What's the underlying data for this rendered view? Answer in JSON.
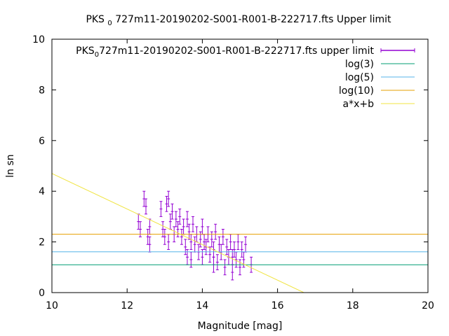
{
  "chart_data": {
    "type": "scatter",
    "title_prefix": "PKS",
    "title_sub": "0",
    "title_suffix": "727m11-20190202-S001-R001-B-222717.fts Upper limit",
    "xlabel": "Magnitude [mag]",
    "ylabel": "ln sn",
    "xlim": [
      10,
      20
    ],
    "ylim": [
      0,
      10
    ],
    "xticks": [
      "10",
      "12",
      "14",
      "16",
      "18",
      "20"
    ],
    "yticks": [
      "0",
      "2",
      "4",
      "6",
      "8",
      "10"
    ],
    "grid": false,
    "legend_position": "top-right",
    "series": [
      {
        "name_prefix": "PKS",
        "name_sub": "0",
        "name_suffix": "727m11-20190202-S001-R001-B-222717.fts upper limit",
        "kind": "errorbar",
        "color": "#9400d3",
        "points": [
          [
            12.3,
            2.8,
            0.3
          ],
          [
            12.35,
            2.5,
            0.3
          ],
          [
            12.45,
            3.7,
            0.3
          ],
          [
            12.5,
            3.4,
            0.3
          ],
          [
            12.55,
            2.2,
            0.3
          ],
          [
            12.6,
            2.6,
            0.3
          ],
          [
            12.6,
            1.9,
            0.3
          ],
          [
            12.9,
            3.3,
            0.3
          ],
          [
            12.95,
            2.5,
            0.3
          ],
          [
            13.0,
            2.2,
            0.3
          ],
          [
            13.05,
            3.5,
            0.3
          ],
          [
            13.1,
            2.0,
            0.3
          ],
          [
            13.1,
            3.7,
            0.3
          ],
          [
            13.15,
            2.8,
            0.3
          ],
          [
            13.2,
            3.2,
            0.3
          ],
          [
            13.25,
            2.3,
            0.3
          ],
          [
            13.3,
            2.9,
            0.3
          ],
          [
            13.35,
            2.5,
            0.3
          ],
          [
            13.4,
            3.0,
            0.3
          ],
          [
            13.45,
            2.2,
            0.3
          ],
          [
            13.5,
            2.6,
            0.3
          ],
          [
            13.55,
            1.8,
            0.3
          ],
          [
            13.6,
            2.9,
            0.3
          ],
          [
            13.65,
            2.4,
            0.3
          ],
          [
            13.7,
            2.0,
            0.3
          ],
          [
            13.7,
            1.3,
            0.3
          ],
          [
            13.75,
            2.7,
            0.3
          ],
          [
            13.8,
            1.9,
            0.3
          ],
          [
            13.85,
            2.3,
            0.3
          ],
          [
            13.9,
            1.6,
            0.3
          ],
          [
            13.95,
            2.1,
            0.3
          ],
          [
            14.0,
            1.4,
            0.3
          ],
          [
            14.0,
            2.6,
            0.3
          ],
          [
            14.05,
            2.0,
            0.3
          ],
          [
            14.1,
            1.8,
            0.3
          ],
          [
            14.15,
            2.3,
            0.3
          ],
          [
            14.2,
            1.5,
            0.3
          ],
          [
            14.25,
            2.1,
            0.3
          ],
          [
            14.3,
            1.7,
            0.3
          ],
          [
            14.35,
            2.4,
            0.3
          ],
          [
            14.4,
            1.2,
            0.3
          ],
          [
            14.45,
            1.9,
            0.3
          ],
          [
            14.5,
            1.6,
            0.3
          ],
          [
            14.55,
            2.2,
            0.3
          ],
          [
            14.6,
            1.0,
            0.3
          ],
          [
            14.65,
            1.8,
            0.3
          ],
          [
            14.7,
            1.4,
            0.3
          ],
          [
            14.75,
            2.0,
            0.3
          ],
          [
            14.8,
            0.8,
            0.3
          ],
          [
            14.85,
            1.7,
            0.3
          ],
          [
            14.9,
            1.3,
            0.3
          ],
          [
            14.95,
            2.0,
            0.3
          ],
          [
            15.0,
            1.0,
            0.3
          ],
          [
            15.05,
            1.7,
            0.3
          ],
          [
            15.1,
            1.3,
            0.3
          ],
          [
            15.15,
            1.9,
            0.3
          ],
          [
            15.3,
            1.1,
            0.3
          ],
          [
            13.6,
            1.4,
            0.3
          ],
          [
            14.3,
            1.1,
            0.3
          ],
          [
            14.8,
            1.4,
            0.3
          ]
        ]
      },
      {
        "name": "log(3)",
        "kind": "hline",
        "value": 1.0986,
        "color": "#009e73"
      },
      {
        "name": "log(5)",
        "kind": "hline",
        "value": 1.6094,
        "color": "#56b4e9"
      },
      {
        "name": "log(10)",
        "kind": "hline",
        "value": 2.3026,
        "color": "#e69f00"
      },
      {
        "name": "a*x+b",
        "kind": "fit",
        "x": [
          10,
          16.7
        ],
        "y": [
          4.7,
          0
        ],
        "color": "#f0e442"
      }
    ]
  }
}
